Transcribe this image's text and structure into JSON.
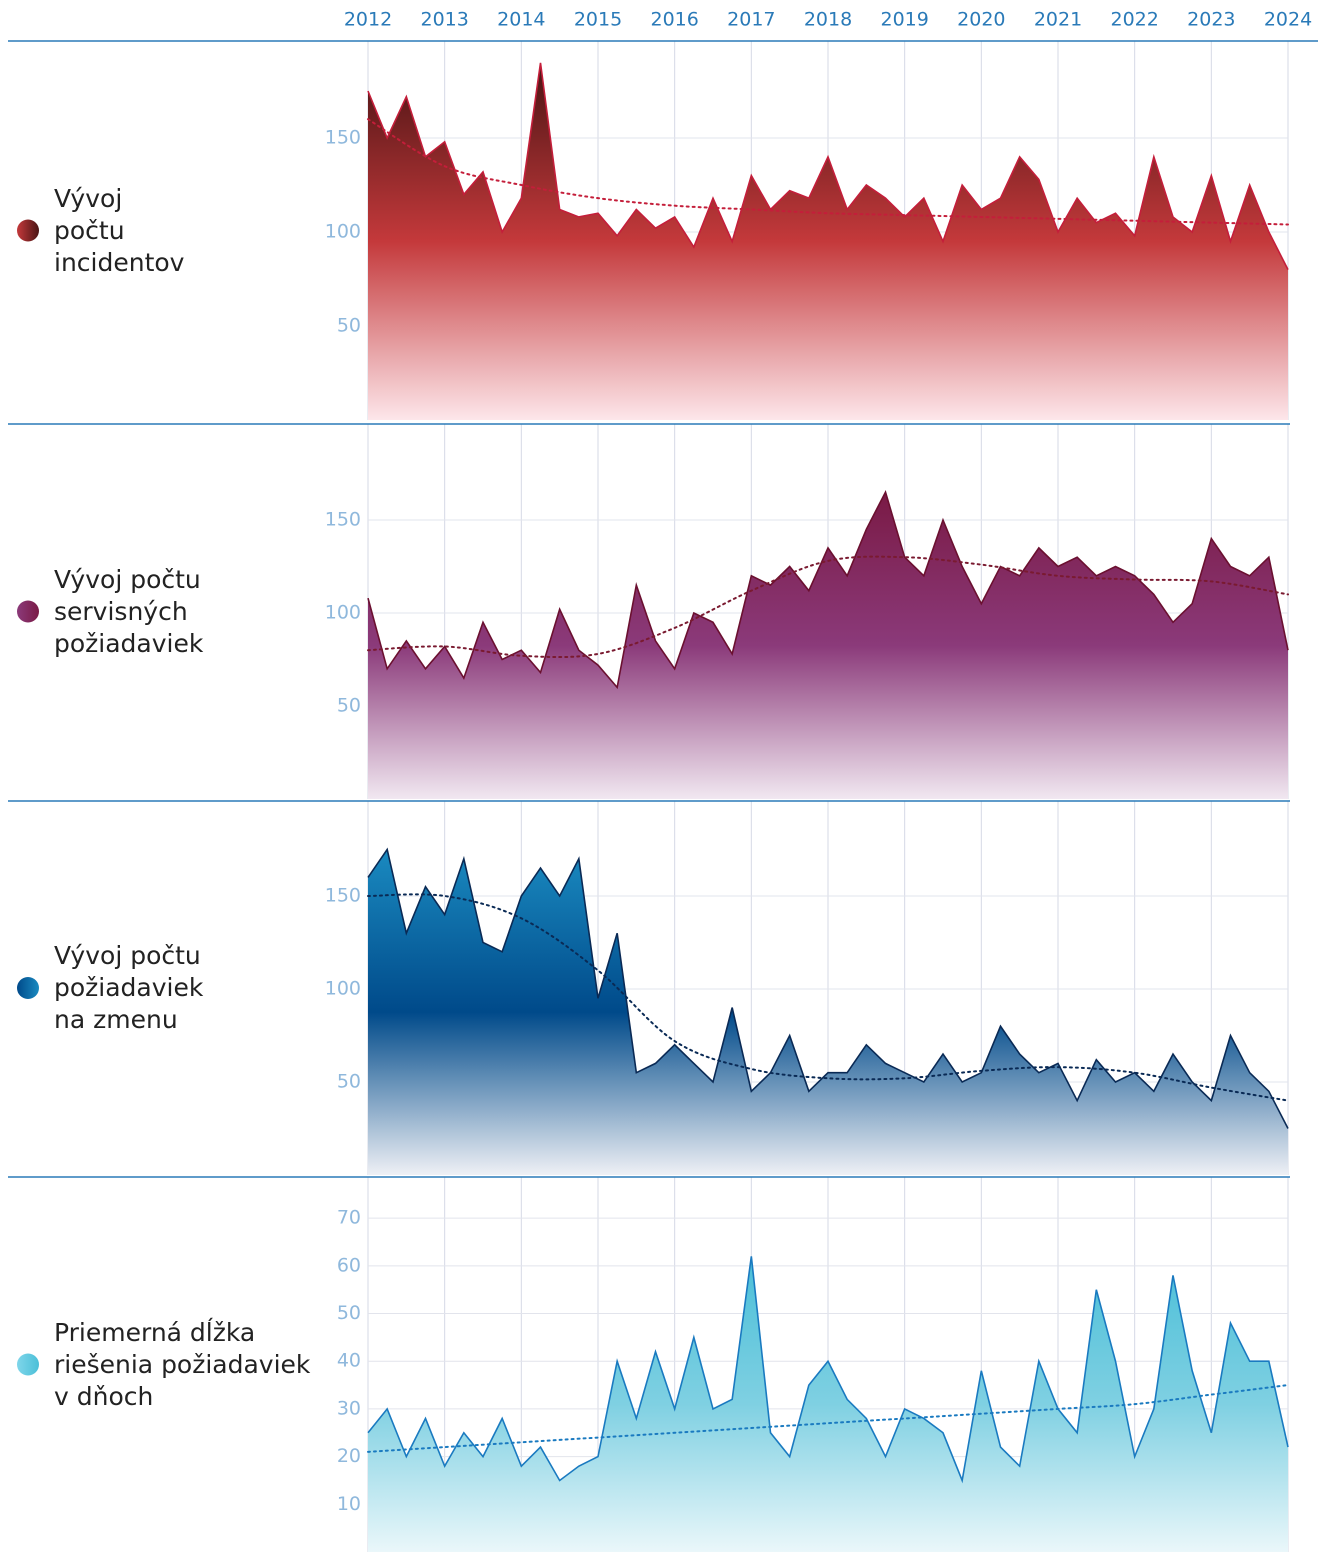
{
  "chart_data": [
    {
      "type": "area",
      "title_lines": [
        "Vývoj",
        "počtu",
        "incidentov"
      ],
      "x": [
        2012,
        2012.25,
        2012.5,
        2012.75,
        2013,
        2013.25,
        2013.5,
        2013.75,
        2014,
        2014.25,
        2014.5,
        2014.75,
        2015,
        2015.25,
        2015.5,
        2015.75,
        2016,
        2016.25,
        2016.5,
        2016.75,
        2017,
        2017.25,
        2017.5,
        2017.75,
        2018,
        2018.25,
        2018.5,
        2018.75,
        2019,
        2019.25,
        2019.5,
        2019.75,
        2020,
        2020.25,
        2020.5,
        2020.75,
        2021,
        2021.25,
        2021.5,
        2021.75,
        2022,
        2022.25,
        2022.5,
        2022.75,
        2023,
        2023.25,
        2023.5,
        2023.75,
        2024
      ],
      "values": [
        175,
        150,
        172,
        140,
        148,
        120,
        132,
        100,
        118,
        190,
        112,
        108,
        110,
        98,
        112,
        102,
        108,
        92,
        118,
        95,
        130,
        112,
        122,
        118,
        140,
        112,
        125,
        118,
        108,
        118,
        95,
        125,
        112,
        118,
        140,
        128,
        100,
        118,
        105,
        110,
        98,
        140,
        108,
        100,
        130,
        95,
        125,
        100,
        80
      ],
      "trend_x": [
        2012,
        2013,
        2014,
        2015,
        2016,
        2017,
        2018,
        2019,
        2020,
        2021,
        2022,
        2023,
        2024
      ],
      "trend": [
        160,
        135,
        125,
        118,
        114,
        112,
        110,
        109,
        108,
        107,
        106,
        105,
        104
      ],
      "color": "#c41e3a",
      "fill_colors": [
        "#4a1414",
        "#c4393b",
        "#fde6ea"
      ],
      "trend_color": "#c41e3a",
      "xlim": [
        2012,
        2024
      ],
      "xticks": [
        2012,
        2013,
        2014,
        2015,
        2016,
        2017,
        2018,
        2019,
        2020,
        2021,
        2022,
        2023,
        2024
      ],
      "ylim": [
        0,
        200
      ],
      "yticks": [
        50,
        100,
        150
      ],
      "grid": true
    },
    {
      "type": "area",
      "title_lines": [
        "Vývoj počtu",
        "servisných",
        "požiadaviek"
      ],
      "x": [
        2012,
        2012.25,
        2012.5,
        2012.75,
        2013,
        2013.25,
        2013.5,
        2013.75,
        2014,
        2014.25,
        2014.5,
        2014.75,
        2015,
        2015.25,
        2015.5,
        2015.75,
        2016,
        2016.25,
        2016.5,
        2016.75,
        2017,
        2017.25,
        2017.5,
        2017.75,
        2018,
        2018.25,
        2018.5,
        2018.75,
        2019,
        2019.25,
        2019.5,
        2019.75,
        2020,
        2020.25,
        2020.5,
        2020.75,
        2021,
        2021.25,
        2021.5,
        2021.75,
        2022,
        2022.25,
        2022.5,
        2022.75,
        2023,
        2023.25,
        2023.5,
        2023.75,
        2024
      ],
      "values": [
        108,
        70,
        85,
        70,
        82,
        65,
        95,
        75,
        80,
        68,
        102,
        80,
        72,
        60,
        115,
        85,
        70,
        100,
        95,
        78,
        120,
        115,
        125,
        112,
        135,
        120,
        145,
        165,
        130,
        120,
        150,
        125,
        105,
        125,
        120,
        135,
        125,
        130,
        120,
        125,
        120,
        110,
        95,
        105,
        140,
        125,
        120,
        130,
        80
      ],
      "trend_x": [
        2012,
        2013,
        2014,
        2015,
        2016,
        2017,
        2018,
        2019,
        2020,
        2021,
        2022,
        2023,
        2024
      ],
      "trend": [
        80,
        82,
        77,
        78,
        92,
        112,
        128,
        130,
        126,
        120,
        118,
        117,
        110
      ],
      "color": "#6b1030",
      "fill_colors": [
        "#7a1a45",
        "#8b3a7a",
        "#f1e8f1"
      ],
      "trend_color": "#7a1a30",
      "xlim": [
        2012,
        2024
      ],
      "xticks": [
        2012,
        2013,
        2014,
        2015,
        2016,
        2017,
        2018,
        2019,
        2020,
        2021,
        2022,
        2023,
        2024
      ],
      "ylim": [
        0,
        200
      ],
      "yticks": [
        50,
        100,
        150
      ],
      "grid": true
    },
    {
      "type": "area",
      "title_lines": [
        "Vývoj počtu",
        "požiadaviek",
        "na zmenu"
      ],
      "x": [
        2012,
        2012.25,
        2012.5,
        2012.75,
        2013,
        2013.25,
        2013.5,
        2013.75,
        2014,
        2014.25,
        2014.5,
        2014.75,
        2015,
        2015.25,
        2015.5,
        2015.75,
        2016,
        2016.25,
        2016.5,
        2016.75,
        2017,
        2017.25,
        2017.5,
        2017.75,
        2018,
        2018.25,
        2018.5,
        2018.75,
        2019,
        2019.25,
        2019.5,
        2019.75,
        2020,
        2020.25,
        2020.5,
        2020.75,
        2021,
        2021.25,
        2021.5,
        2021.75,
        2022,
        2022.25,
        2022.5,
        2022.75,
        2023,
        2023.25,
        2023.5,
        2023.75,
        2024
      ],
      "values": [
        160,
        175,
        130,
        155,
        140,
        170,
        125,
        120,
        150,
        165,
        150,
        170,
        95,
        130,
        55,
        60,
        70,
        60,
        50,
        90,
        45,
        55,
        75,
        45,
        55,
        55,
        70,
        60,
        55,
        50,
        65,
        50,
        55,
        80,
        65,
        55,
        60,
        40,
        62,
        50,
        55,
        45,
        65,
        50,
        40,
        75,
        55,
        45,
        25
      ],
      "trend_x": [
        2012,
        2013,
        2014,
        2015,
        2016,
        2017,
        2018,
        2019,
        2020,
        2021,
        2022,
        2023,
        2024
      ],
      "trend": [
        150,
        150,
        138,
        110,
        72,
        57,
        52,
        52,
        56,
        58,
        55,
        47,
        40
      ],
      "color": "#0a2a55",
      "fill_colors": [
        "#1a8ac0",
        "#004a8a",
        "#eef0f5"
      ],
      "trend_color": "#0a2a55",
      "xlim": [
        2012,
        2024
      ],
      "xticks": [
        2012,
        2013,
        2014,
        2015,
        2016,
        2017,
        2018,
        2019,
        2020,
        2021,
        2022,
        2023,
        2024
      ],
      "ylim": [
        0,
        200
      ],
      "yticks": [
        50,
        100,
        150
      ],
      "grid": true
    },
    {
      "type": "area",
      "title_lines": [
        "Priemerná dĺžka",
        "riešenia požiadaviek",
        "v dňoch"
      ],
      "x": [
        2012,
        2012.25,
        2012.5,
        2012.75,
        2013,
        2013.25,
        2013.5,
        2013.75,
        2014,
        2014.25,
        2014.5,
        2014.75,
        2015,
        2015.25,
        2015.5,
        2015.75,
        2016,
        2016.25,
        2016.5,
        2016.75,
        2017,
        2017.25,
        2017.5,
        2017.75,
        2018,
        2018.25,
        2018.5,
        2018.75,
        2019,
        2019.25,
        2019.5,
        2019.75,
        2020,
        2020.25,
        2020.5,
        2020.75,
        2021,
        2021.25,
        2021.5,
        2021.75,
        2022,
        2022.25,
        2022.5,
        2022.75,
        2023,
        2023.25,
        2023.5,
        2023.75,
        2024
      ],
      "values": [
        25,
        30,
        20,
        28,
        18,
        25,
        20,
        28,
        18,
        22,
        15,
        18,
        20,
        40,
        28,
        42,
        30,
        45,
        30,
        32,
        62,
        25,
        20,
        35,
        40,
        32,
        28,
        20,
        30,
        28,
        25,
        15,
        38,
        22,
        18,
        40,
        30,
        25,
        55,
        40,
        20,
        30,
        58,
        38,
        25,
        48,
        40,
        40,
        22
      ],
      "trend_x": [
        2012,
        2013,
        2014,
        2015,
        2016,
        2017,
        2018,
        2019,
        2020,
        2021,
        2022,
        2023,
        2024
      ],
      "trend": [
        21,
        22,
        23,
        24,
        25,
        26,
        27,
        28,
        29,
        30,
        31,
        33,
        35
      ],
      "color": "#1a7ac0",
      "fill_colors": [
        "#4bbfd8",
        "#7fd0e2",
        "#eaf7fa"
      ],
      "trend_color": "#1a7ac0",
      "xlim": [
        2012,
        2024
      ],
      "xticks": [
        2012,
        2013,
        2014,
        2015,
        2016,
        2017,
        2018,
        2019,
        2020,
        2021,
        2022,
        2023,
        2024
      ],
      "ylim": [
        0,
        78
      ],
      "yticks": [
        10,
        20,
        30,
        40,
        50,
        60,
        70
      ],
      "grid": true
    }
  ]
}
